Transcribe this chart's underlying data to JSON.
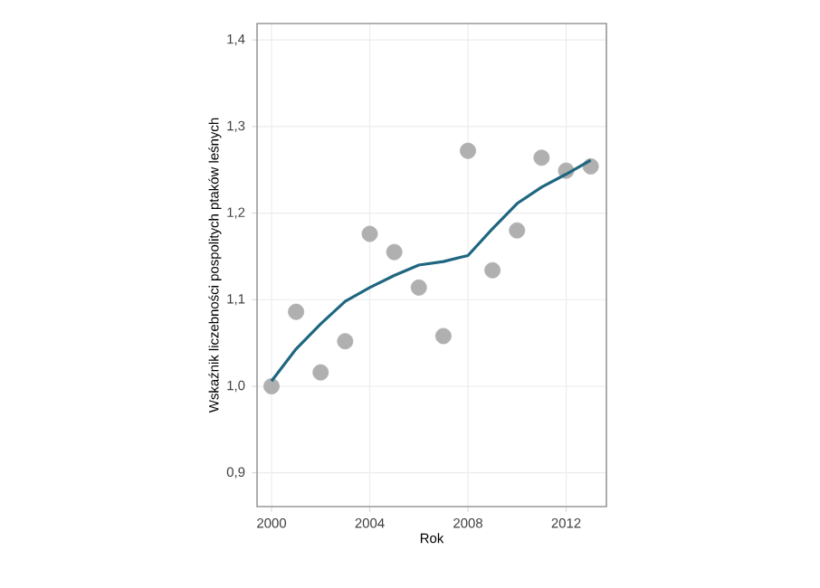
{
  "chart_data": {
    "type": "scatter",
    "xlabel": "Rok",
    "ylabel": "Wskaźnik liczebności pospolitych ptaków leśnych",
    "xlim": [
      1999.41,
      2013.64
    ],
    "ylim": [
      0.861,
      1.419
    ],
    "xticks": [
      2000,
      2004,
      2008,
      2012
    ],
    "yticks": [
      {
        "value": 0.9,
        "label": "0,9"
      },
      {
        "value": 1.0,
        "label": "1,0"
      },
      {
        "value": 1.1,
        "label": "1,1"
      },
      {
        "value": 1.2,
        "label": "1,2"
      },
      {
        "value": 1.3,
        "label": "1,3"
      },
      {
        "value": 1.4,
        "label": "1,4"
      }
    ],
    "grid": true,
    "series": [
      {
        "marker": "circle",
        "color": "#b0b0b0",
        "x": [
          2000,
          2001,
          2002,
          2003,
          2004,
          2005,
          2006,
          2007,
          2008,
          2009,
          2010,
          2011,
          2012,
          2013
        ],
        "values": [
          1.0,
          1.086,
          1.016,
          1.052,
          1.176,
          1.155,
          1.114,
          1.058,
          1.272,
          1.134,
          1.18,
          1.264,
          1.249,
          1.254
        ]
      },
      {
        "type": "line",
        "color": "#1f6680",
        "x": [
          2000,
          2001,
          2002,
          2003,
          2004,
          2005,
          2006,
          2007,
          2008,
          2009,
          2010,
          2011,
          2012,
          2013
        ],
        "values": [
          1.006,
          1.043,
          1.072,
          1.098,
          1.114,
          1.128,
          1.14,
          1.144,
          1.151,
          1.182,
          1.211,
          1.23,
          1.245,
          1.261
        ]
      }
    ]
  }
}
